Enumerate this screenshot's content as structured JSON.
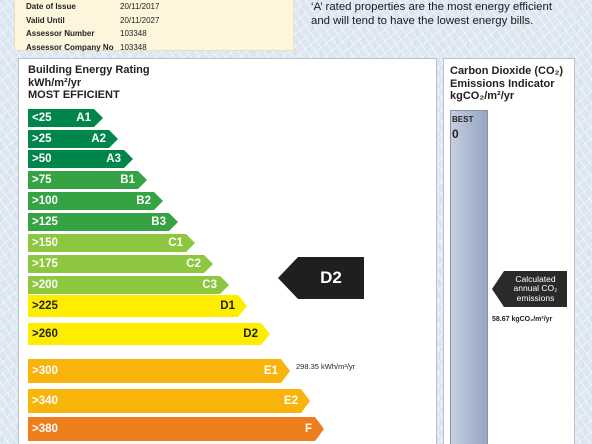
{
  "assessor": {
    "rows": [
      {
        "label": "Date of Issue",
        "value": "20/11/2017"
      },
      {
        "label": "Valid Until",
        "value": "20/11/2027"
      },
      {
        "label": "Assessor Number",
        "value": "103348"
      },
      {
        "label": "Assessor Company No",
        "value": "103348"
      }
    ]
  },
  "intro": {
    "line1": "‘A’ rated properties are the most energy efficient",
    "line2": "and will tend to have the lowest energy bills."
  },
  "ber": {
    "title": "Building Energy Rating",
    "unit": "kWh/m²/yr",
    "most_efficient": "MOST EFFICIENT",
    "bands": [
      {
        "range": "<25",
        "grade": "A1",
        "color": "#00854a"
      },
      {
        "range": ">25",
        "grade": "A2",
        "color": "#00854a"
      },
      {
        "range": ">50",
        "grade": "A3",
        "color": "#00854a"
      },
      {
        "range": ">75",
        "grade": "B1",
        "color": "#35a243"
      },
      {
        "range": ">100",
        "grade": "B2",
        "color": "#35a243"
      },
      {
        "range": ">125",
        "grade": "B3",
        "color": "#35a243"
      },
      {
        "range": ">150",
        "grade": "C1",
        "color": "#8dc63f"
      },
      {
        "range": ">175",
        "grade": "C2",
        "color": "#8dc63f"
      },
      {
        "range": ">200",
        "grade": "C3",
        "color": "#8dc63f"
      },
      {
        "range": ">225",
        "grade": "D1",
        "color": "#ffed00",
        "light": true
      },
      {
        "range": ">260",
        "grade": "D2",
        "color": "#ffed00",
        "light": true
      },
      {
        "range": ">300",
        "grade": "E1",
        "color": "#f8b40b"
      },
      {
        "range": ">340",
        "grade": "E2",
        "color": "#f8b40b"
      },
      {
        "range": ">380",
        "grade": "F",
        "color": "#ee7d1e"
      }
    ],
    "current_grade": "D2",
    "current_value": "298.35 kWh/m²/yr"
  },
  "co2": {
    "title_line1": "Carbon Dioxide (CO₂)",
    "title_line2": "Emissions Indicator",
    "title_line3": "kgCO₂/m²/yr",
    "best_label": "BEST",
    "best_value": "0",
    "pointer_line1": "Calculated",
    "pointer_line2": "annual CO₂",
    "pointer_line3": "emissions",
    "value": "58.67 kgCO₂/m²/yr"
  }
}
